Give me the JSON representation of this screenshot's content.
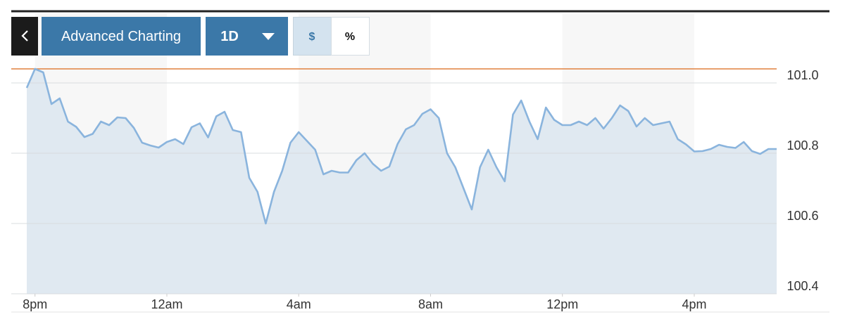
{
  "toolbar": {
    "main_button": "Advanced Charting",
    "range_button": "1D",
    "dollar_toggle": "$",
    "percent_toggle": "%"
  },
  "chart_data": {
    "type": "line",
    "x": [
      -0.25,
      0,
      0.25,
      0.5,
      0.75,
      1,
      1.25,
      1.5,
      1.75,
      2,
      2.25,
      2.5,
      2.75,
      3,
      3.25,
      3.5,
      3.75,
      4,
      4.25,
      4.5,
      4.75,
      5,
      5.25,
      5.5,
      5.75,
      6,
      6.25,
      6.5,
      6.75,
      7,
      7.25,
      7.5,
      7.75,
      8,
      8.25,
      8.5,
      8.75,
      9,
      9.25,
      9.5,
      9.75,
      10,
      10.25,
      10.5,
      10.75,
      11,
      11.25,
      11.5,
      11.75,
      12,
      12.25,
      12.5,
      12.75,
      13,
      13.25,
      13.5,
      13.75,
      14,
      14.25,
      14.5,
      14.75,
      15,
      15.25,
      15.5,
      15.75,
      16,
      16.25,
      16.5,
      16.75,
      17,
      17.25,
      17.5,
      17.75,
      18,
      18.25,
      18.5,
      18.75,
      19,
      19.25,
      19.5,
      19.75,
      20,
      20.25,
      20.5,
      20.75,
      21,
      21.25,
      21.5,
      21.75,
      22,
      22.25,
      22.5
    ],
    "series": [
      {
        "color": "#8ab4dd",
        "values": [
          100.986,
          101.04,
          101.03,
          100.94,
          100.956,
          100.89,
          100.875,
          100.846,
          100.855,
          100.89,
          100.88,
          100.902,
          100.9,
          100.872,
          100.83,
          100.822,
          100.816,
          100.832,
          100.84,
          100.826,
          100.874,
          100.885,
          100.845,
          100.905,
          100.918,
          100.866,
          100.86,
          100.73,
          100.69,
          100.6,
          100.69,
          100.75,
          100.83,
          100.86,
          100.835,
          100.81,
          100.74,
          100.75,
          100.745,
          100.745,
          100.78,
          100.8,
          100.77,
          100.75,
          100.762,
          100.826,
          100.868,
          100.88,
          100.912,
          100.925,
          100.9,
          100.8,
          100.76,
          100.7,
          100.64,
          100.76,
          100.81,
          100.76,
          100.72,
          100.91,
          100.95,
          100.89,
          100.84,
          100.93,
          100.895,
          100.88,
          100.88,
          100.89,
          100.88,
          100.9,
          100.87,
          100.9,
          100.936,
          100.92,
          100.876,
          100.9,
          100.88,
          100.885,
          100.89,
          100.84,
          100.825,
          100.805,
          100.806,
          100.812,
          100.824,
          100.818,
          100.815,
          100.832,
          100.806,
          100.798,
          100.812,
          100.812
        ]
      }
    ],
    "reference_line": {
      "value": 101.04,
      "color": "#e0813f"
    },
    "xlim": [
      -0.25,
      22.5
    ],
    "xticks": [
      {
        "value": 0,
        "label": "8pm"
      },
      {
        "value": 4,
        "label": "12am"
      },
      {
        "value": 8,
        "label": "4am"
      },
      {
        "value": 12,
        "label": "8am"
      },
      {
        "value": 16,
        "label": "12pm"
      },
      {
        "value": 20,
        "label": "4pm"
      }
    ],
    "ylim": [
      100.4,
      101.05
    ],
    "yticks": [
      {
        "value": 101.0,
        "label": "101.0"
      },
      100.8,
      100.6,
      100.4
    ],
    "grid": true
  }
}
